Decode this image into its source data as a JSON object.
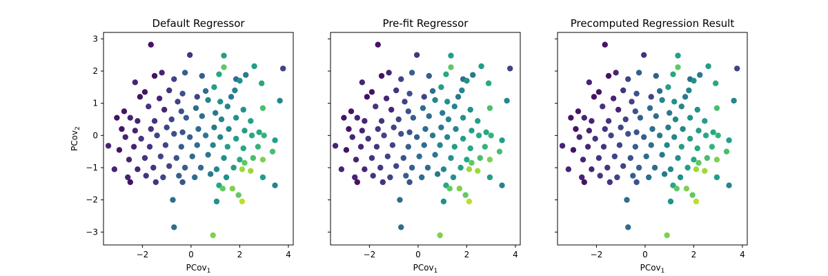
{
  "chart_data": {
    "type": "scatter",
    "xlim": [
      -3.6,
      4.2
    ],
    "ylim": [
      -3.4,
      3.2
    ],
    "x_ticks": [
      -2,
      0,
      2,
      4
    ],
    "y_ticks": [
      3,
      2,
      1,
      0,
      -1,
      -2,
      -3
    ],
    "tick_labels": {
      "x": [
        "−2",
        "0",
        "2",
        "4"
      ],
      "y": [
        "3",
        "2",
        "1",
        "0",
        "−1",
        "−2",
        "−3"
      ]
    },
    "xlabel": {
      "base": "PCov",
      "sub": "1"
    },
    "ylabel": {
      "base": "PCov",
      "sub": "2"
    },
    "grid": false,
    "color_scale": "viridis",
    "colormap_stops": [
      "#440154",
      "#472d7b",
      "#3b528b",
      "#2c728e",
      "#21918c",
      "#28ae80",
      "#5ec962",
      "#addc30",
      "#fde725"
    ],
    "panels": [
      {
        "title": "Default Regressor",
        "show_ylabel": true
      },
      {
        "title": "Pre-fit Regressor",
        "show_ylabel": false
      },
      {
        "title": "Precomputed Regression Result",
        "show_ylabel": false
      }
    ],
    "points": [
      [
        -1.65,
        2.82,
        0.05
      ],
      [
        -0.05,
        2.5,
        0.15
      ],
      [
        1.35,
        2.48,
        0.55
      ],
      [
        1.35,
        2.12,
        0.75
      ],
      [
        2.6,
        2.15,
        0.55
      ],
      [
        3.78,
        2.08,
        0.2
      ],
      [
        1.15,
        1.9,
        0.6
      ],
      [
        2.25,
        1.88,
        0.4
      ],
      [
        -0.25,
        1.95,
        0.3
      ],
      [
        -1.2,
        1.95,
        0.1
      ],
      [
        -1.5,
        1.85,
        0.05
      ],
      [
        0.45,
        1.85,
        0.3
      ],
      [
        -0.7,
        1.75,
        0.2
      ],
      [
        1.85,
        1.75,
        0.35
      ],
      [
        2.0,
        1.7,
        0.5
      ],
      [
        1.8,
        1.4,
        0.45
      ],
      [
        2.9,
        1.62,
        0.6
      ],
      [
        -2.3,
        1.65,
        0.1
      ],
      [
        -1.9,
        1.35,
        0.05
      ],
      [
        0.95,
        1.5,
        0.55
      ],
      [
        0.6,
        1.38,
        0.35
      ],
      [
        -0.9,
        1.4,
        0.15
      ],
      [
        -0.35,
        1.3,
        0.25
      ],
      [
        0.25,
        1.2,
        0.2
      ],
      [
        -2.1,
        1.2,
        0.05
      ],
      [
        -1.3,
        1.15,
        0.1
      ],
      [
        -0.55,
        1.05,
        0.2
      ],
      [
        0.7,
        1.1,
        0.45
      ],
      [
        1.2,
        1.05,
        0.5
      ],
      [
        1.65,
        1.2,
        0.4
      ],
      [
        3.65,
        1.08,
        0.45
      ],
      [
        -2.75,
        0.75,
        0.05
      ],
      [
        -2.5,
        0.55,
        0.1
      ],
      [
        -1.75,
        0.9,
        0.15
      ],
      [
        -1.1,
        0.8,
        0.1
      ],
      [
        -0.4,
        0.75,
        0.25
      ],
      [
        0.2,
        0.85,
        0.35
      ],
      [
        1.0,
        0.7,
        0.4
      ],
      [
        1.5,
        0.9,
        0.45
      ],
      [
        2.15,
        0.8,
        0.5
      ],
      [
        2.95,
        0.85,
        0.7
      ],
      [
        -3.05,
        0.55,
        0.05
      ],
      [
        -2.2,
        0.45,
        0.1
      ],
      [
        -1.5,
        0.45,
        0.15
      ],
      [
        -0.8,
        0.5,
        0.2
      ],
      [
        -0.2,
        0.55,
        0.3
      ],
      [
        0.45,
        0.6,
        0.35
      ],
      [
        1.25,
        0.5,
        0.45
      ],
      [
        1.85,
        0.55,
        0.5
      ],
      [
        2.45,
        0.45,
        0.55
      ],
      [
        -2.85,
        0.2,
        0.05
      ],
      [
        -2.3,
        0.15,
        0.1
      ],
      [
        -1.65,
        0.2,
        0.15
      ],
      [
        -1.0,
        0.25,
        0.2
      ],
      [
        -0.35,
        0.1,
        0.25
      ],
      [
        0.3,
        0.2,
        0.35
      ],
      [
        0.95,
        0.25,
        0.4
      ],
      [
        1.55,
        0.2,
        0.45
      ],
      [
        2.2,
        0.15,
        0.55
      ],
      [
        2.8,
        0.1,
        0.6
      ],
      [
        -3.4,
        -0.32,
        0.1
      ],
      [
        -2.7,
        -0.05,
        0.1
      ],
      [
        -2.05,
        -0.1,
        0.15
      ],
      [
        -1.4,
        0.0,
        0.2
      ],
      [
        -0.7,
        0.05,
        0.25
      ],
      [
        -0.05,
        -0.05,
        0.3
      ],
      [
        0.6,
        0.0,
        0.4
      ],
      [
        1.2,
        -0.05,
        0.45
      ],
      [
        1.85,
        -0.1,
        0.55
      ],
      [
        2.5,
        0.0,
        0.6
      ],
      [
        3.0,
        0.0,
        0.65
      ],
      [
        3.45,
        -0.15,
        0.55
      ],
      [
        -2.95,
        -0.45,
        0.05
      ],
      [
        -2.35,
        -0.35,
        0.1
      ],
      [
        -1.7,
        -0.35,
        0.15
      ],
      [
        -1.05,
        -0.3,
        0.2
      ],
      [
        -0.4,
        -0.35,
        0.3
      ],
      [
        0.25,
        -0.3,
        0.35
      ],
      [
        0.9,
        -0.3,
        0.45
      ],
      [
        1.5,
        -0.35,
        0.55
      ],
      [
        2.15,
        -0.4,
        0.6
      ],
      [
        2.75,
        -0.35,
        0.65
      ],
      [
        3.35,
        -0.5,
        0.7
      ],
      [
        -2.55,
        -0.75,
        0.1
      ],
      [
        -1.9,
        -0.7,
        0.15
      ],
      [
        -1.25,
        -0.65,
        0.2
      ],
      [
        -0.6,
        -0.7,
        0.25
      ],
      [
        0.05,
        -0.65,
        0.35
      ],
      [
        0.7,
        -0.6,
        0.4
      ],
      [
        1.35,
        -0.7,
        0.5
      ],
      [
        2.0,
        -0.75,
        0.6
      ],
      [
        2.55,
        -0.7,
        0.7
      ],
      [
        2.95,
        -0.75,
        0.8
      ],
      [
        -3.15,
        -1.05,
        0.1
      ],
      [
        -2.2,
        -1.05,
        0.1
      ],
      [
        -1.55,
        -1.0,
        0.15
      ],
      [
        -0.9,
        -0.95,
        0.2
      ],
      [
        -0.25,
        -1.0,
        0.3
      ],
      [
        0.4,
        -1.0,
        0.35
      ],
      [
        1.05,
        -1.05,
        0.45
      ],
      [
        1.75,
        -1.0,
        0.55
      ],
      [
        2.2,
        -0.85,
        0.75
      ],
      [
        2.45,
        -1.1,
        0.85
      ],
      [
        -2.6,
        -1.3,
        0.1
      ],
      [
        -1.85,
        -1.25,
        0.15
      ],
      [
        -1.15,
        -1.3,
        0.2
      ],
      [
        -0.5,
        -1.25,
        0.3
      ],
      [
        0.15,
        -1.3,
        0.35
      ],
      [
        0.8,
        -1.2,
        0.4
      ],
      [
        1.45,
        -1.3,
        0.5
      ],
      [
        2.1,
        -1.05,
        0.85
      ],
      [
        2.95,
        -1.3,
        0.55
      ],
      [
        -2.5,
        -1.45,
        0.05
      ],
      [
        -1.45,
        -1.45,
        0.15
      ],
      [
        -0.35,
        -1.45,
        0.25
      ],
      [
        1.15,
        -1.55,
        0.6
      ],
      [
        3.45,
        -1.55,
        0.45
      ],
      [
        1.3,
        -1.65,
        0.75
      ],
      [
        1.7,
        -1.65,
        0.8
      ],
      [
        1.95,
        -1.85,
        0.75
      ],
      [
        -0.75,
        -2.0,
        0.35
      ],
      [
        1.05,
        -2.05,
        0.5
      ],
      [
        2.1,
        -2.05,
        0.9
      ],
      [
        -0.7,
        -2.85,
        0.35
      ],
      [
        0.9,
        -3.1,
        0.8
      ]
    ]
  }
}
